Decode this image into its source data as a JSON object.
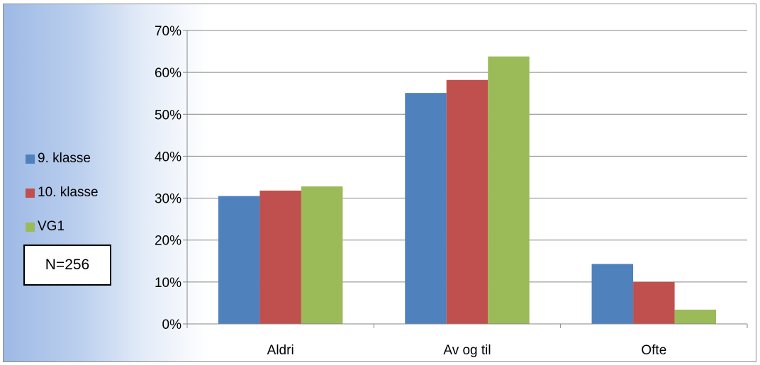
{
  "chart_data": {
    "type": "bar",
    "categories": [
      "Aldri",
      "Av og til",
      "Ofte"
    ],
    "series": [
      {
        "name": "9. klasse",
        "color": "#4f81bd",
        "values": [
          30.5,
          55.1,
          14.3
        ]
      },
      {
        "name": "10. klasse",
        "color": "#c0504d",
        "values": [
          31.8,
          58.2,
          10.0
        ]
      },
      {
        "name": "VG1",
        "color": "#9bbb59",
        "values": [
          32.8,
          63.8,
          3.4
        ]
      }
    ],
    "yticks": [
      "0%",
      "10%",
      "20%",
      "30%",
      "40%",
      "50%",
      "60%",
      "70%"
    ],
    "ylim": [
      0,
      70
    ],
    "grid": true,
    "legend_position": "left",
    "annotation": "N=256"
  }
}
